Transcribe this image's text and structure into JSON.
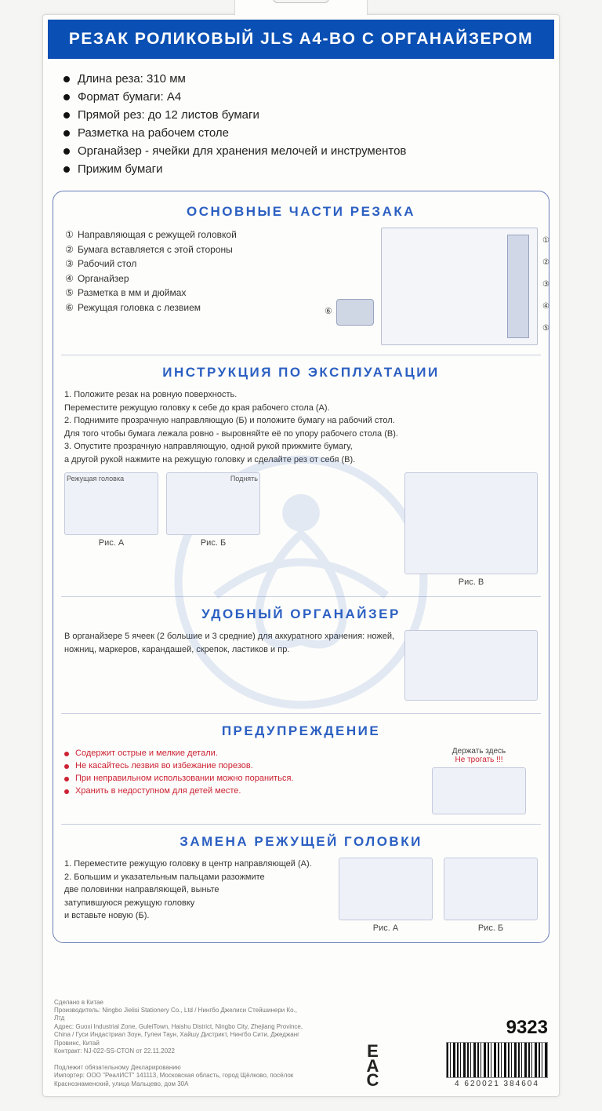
{
  "title": "РЕЗАК РОЛИКОВЫЙ JLS A4-BO С ОРГАНАЙЗЕРОМ",
  "specs": [
    "Длина реза: 310 мм",
    "Формат бумаги: А4",
    "Прямой рез: до 12 листов бумаги",
    "Разметка на рабочем столе",
    "Органайзер - ячейки для хранения мелочей и инструментов",
    "Прижим бумаги"
  ],
  "parts": {
    "title": "ОСНОВНЫЕ ЧАСТИ РЕЗАКА",
    "items": [
      {
        "n": "①",
        "t": "Направляющая с режущей головкой"
      },
      {
        "n": "②",
        "t": "Бумага вставляется с этой стороны"
      },
      {
        "n": "③",
        "t": "Рабочий стол"
      },
      {
        "n": "④",
        "t": "Органайзер"
      },
      {
        "n": "⑤",
        "t": "Разметка в мм и дюймах"
      },
      {
        "n": "⑥",
        "t": "Режущая головка с лезвием"
      }
    ],
    "side_nums": [
      "①",
      "②",
      "③",
      "④",
      "⑤"
    ]
  },
  "instr": {
    "title": "ИНСТРУКЦИЯ ПО ЭКСПЛУАТАЦИИ",
    "lines": [
      "1. Положите резак на ровную поверхность.",
      "Переместите режущую головку к себе до края рабочего стола (А).",
      "2. Поднимите прозрачную направляющую (Б) и положите бумагу на рабочий стол.",
      "Для того чтобы бумага лежала ровно - выровняйте её по упору рабочего стола (В).",
      "3. Опустите прозрачную направляющую, одной рукой прижмите бумагу,",
      "а другой рукой нажмите на режущую головку и сделайте рез от себя (В)."
    ],
    "figA_top": "Режущая головка",
    "figB_top": "Поднять",
    "figA": "Рис. А",
    "figB": "Рис. Б",
    "figV": "Рис. В"
  },
  "org": {
    "title": "УДОБНЫЙ ОРГАНАЙЗЕР",
    "text": "В органайзере 5 ячеек (2 большие и 3 средние) для аккуратного хранения: ножей, ножниц, маркеров, карандашей, скрепок, ластиков и пр."
  },
  "warn": {
    "title": "ПРЕДУПРЕЖДЕНИЕ",
    "items": [
      "Содержит острые и мелкие детали.",
      "Не касайтесь лезвия во избежание порезов.",
      "При неправильном использовании можно пораниться.",
      "Хранить в недоступном для детей месте."
    ],
    "hold": "Держать здесь",
    "notouch": "Не трогать !!!"
  },
  "replace": {
    "title": "ЗАМЕНА РЕЖУЩЕЙ ГОЛОВКИ",
    "lines": [
      "1. Переместите режущую головку в центр направляющей (А).",
      "2. Большим и указательным пальцами разожмите",
      "две половинки направляющей, выньте",
      "затупившуюся режущую головку",
      "и вставьте новую (Б)."
    ],
    "figA": "Рис. А",
    "figB": "Рис. Б"
  },
  "footer": {
    "made": "Сделано в Китае",
    "mfr": "Производитель: Ningbo Jielisi Stationery Co., Ltd / Нингбо Джелиси Стейшинери Ко., Лтд",
    "addr": "Адрес: Guoxi Industrial Zone, GuleiTown, Haishu District, Ningbo City, Zhejiang Province, China / Гуси Индастриал Зоун, Гулеи Таун, Хайшу Дистрикт, Нингбо Сити, Джеджанг Провинс, Китай",
    "contract": "Контракт: NJ-022-SS-CTON от 22.11.2022",
    "decl": "Подлежит обязательному Декларированию",
    "importer": "Импортер: ООО \"РеалИСТ\" 141113, Московская область, город Щёлково, посёлок Краснознаменский, улица Мальцево, дом 30А",
    "code": "9323",
    "barcode": "4 620021 384604",
    "eac": "EAC"
  },
  "colors": {
    "title_bg": "#0a4fb3",
    "title_fg": "#ffffff",
    "heading": "#2b5fc2",
    "frame": "#6a7fb8",
    "warn": "#c23"
  }
}
